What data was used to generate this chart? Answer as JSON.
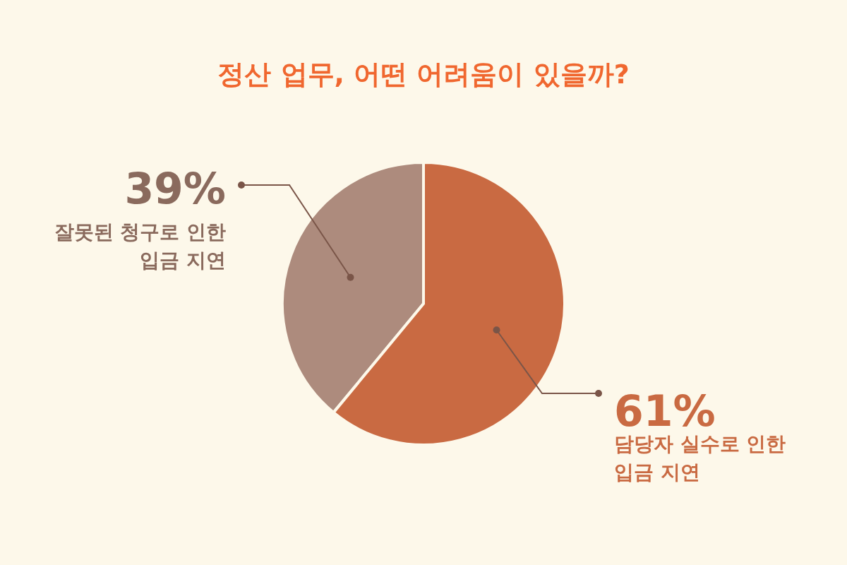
{
  "chart_data": {
    "type": "pie",
    "title": "정산 업무, 어떤 어려움이 있을까?",
    "categories": [
      "잘못된 청구로 인한\n입금 지연",
      "담당자 실수로 인한\n입금 지연"
    ],
    "values": [
      39,
      61
    ],
    "colors": [
      "#ad8b7d",
      "#c96a42"
    ],
    "value_labels": [
      "39%",
      "61%"
    ]
  }
}
